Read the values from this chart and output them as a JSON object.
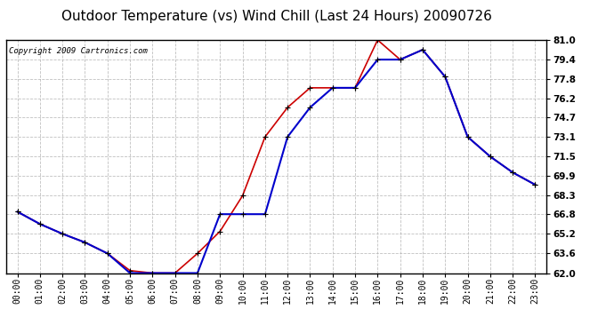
{
  "title": "Outdoor Temperature (vs) Wind Chill (Last 24 Hours) 20090726",
  "copyright": "Copyright 2009 Cartronics.com",
  "hours": [
    "00:00",
    "01:00",
    "02:00",
    "03:00",
    "04:00",
    "05:00",
    "06:00",
    "07:00",
    "08:00",
    "09:00",
    "10:00",
    "11:00",
    "12:00",
    "13:00",
    "14:00",
    "15:00",
    "16:00",
    "17:00",
    "18:00",
    "19:00",
    "20:00",
    "21:00",
    "22:00",
    "23:00"
  ],
  "temp": [
    67.0,
    66.0,
    65.2,
    64.5,
    63.6,
    62.2,
    62.0,
    62.0,
    63.6,
    65.4,
    68.3,
    73.1,
    75.5,
    77.1,
    77.1,
    77.1,
    81.0,
    79.4,
    80.2,
    78.0,
    73.1,
    71.5,
    70.2,
    69.2
  ],
  "windchill": [
    67.0,
    66.0,
    65.2,
    64.5,
    63.6,
    62.0,
    62.0,
    62.0,
    62.0,
    66.8,
    66.8,
    66.8,
    73.1,
    75.5,
    77.1,
    77.1,
    79.4,
    79.4,
    80.2,
    78.0,
    73.1,
    71.5,
    70.2,
    69.2
  ],
  "temp_color": "#cc0000",
  "windchill_color": "#0000cc",
  "ylim_min": 62.0,
  "ylim_max": 81.0,
  "yticks": [
    62.0,
    63.6,
    65.2,
    66.8,
    68.3,
    69.9,
    71.5,
    73.1,
    74.7,
    76.2,
    77.8,
    79.4,
    81.0
  ],
  "bg_color": "#ffffff",
  "grid_color": "#b0b0b0",
  "title_fontsize": 11,
  "copyright_fontsize": 6.5,
  "figsize": [
    6.9,
    3.75
  ],
  "dpi": 100
}
